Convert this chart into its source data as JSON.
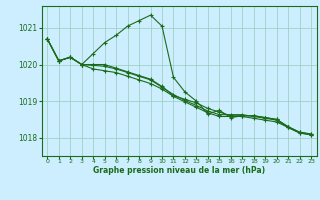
{
  "title": "Graphe pression niveau de la mer (hPa)",
  "background_color": "#cceeff",
  "grid_color": "#aaddcc",
  "line_color": "#1a6b1a",
  "xlim": [
    -0.5,
    23.5
  ],
  "ylim": [
    1017.5,
    1021.6
  ],
  "yticks": [
    1018,
    1019,
    1020,
    1021
  ],
  "xticks": [
    0,
    1,
    2,
    3,
    4,
    5,
    6,
    7,
    8,
    9,
    10,
    11,
    12,
    13,
    14,
    15,
    16,
    17,
    18,
    19,
    20,
    21,
    22,
    23
  ],
  "lines": [
    [
      1020.7,
      1020.1,
      1020.2,
      1020.0,
      1020.3,
      1020.6,
      1020.8,
      1021.05,
      1021.2,
      1021.35,
      1021.05,
      1019.65,
      1019.25,
      1019.0,
      1018.65,
      1018.75,
      1018.55,
      1018.6,
      1018.6,
      1018.55,
      1018.5,
      1018.3,
      1018.15,
      1018.1
    ],
    [
      1020.7,
      1020.1,
      1020.2,
      1020.0,
      1020.0,
      1020.0,
      1019.9,
      1019.8,
      1019.7,
      1019.6,
      1019.4,
      1019.15,
      1019.05,
      1018.95,
      1018.8,
      1018.7,
      1018.6,
      1018.6,
      1018.6,
      1018.55,
      1018.5,
      1018.3,
      1018.15,
      1018.1
    ],
    [
      1020.7,
      1020.1,
      1020.2,
      1020.0,
      1019.98,
      1019.95,
      1019.88,
      1019.78,
      1019.68,
      1019.58,
      1019.38,
      1019.18,
      1019.02,
      1018.88,
      1018.73,
      1018.63,
      1018.63,
      1018.63,
      1018.58,
      1018.53,
      1018.48,
      1018.28,
      1018.13,
      1018.08
    ],
    [
      1020.7,
      1020.1,
      1020.2,
      1020.0,
      1019.88,
      1019.83,
      1019.78,
      1019.68,
      1019.58,
      1019.48,
      1019.33,
      1019.13,
      1018.98,
      1018.83,
      1018.68,
      1018.58,
      1018.58,
      1018.58,
      1018.53,
      1018.48,
      1018.43,
      1018.28,
      1018.13,
      1018.08
    ]
  ]
}
